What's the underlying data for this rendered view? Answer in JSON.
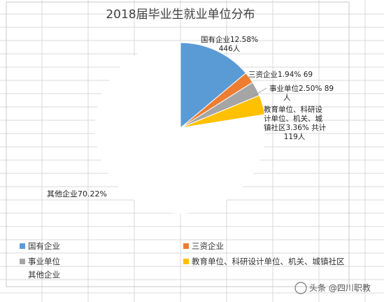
{
  "chart_data": {
    "type": "pie",
    "title": "2018届毕业生就业单位分布",
    "categories": [
      "国有企业",
      "三资企业",
      "事业单位",
      "教育单位、科研设计单位、机关、城镇社区",
      "其他企业"
    ],
    "series": [
      {
        "values": [
          12.58,
          1.94,
          2.5,
          3.36,
          70.22
        ]
      }
    ],
    "counts": [
      446,
      69,
      89,
      119,
      null
    ],
    "colors": [
      "#5b9bd5",
      "#ed7d31",
      "#a5a5a5",
      "#ffc000",
      "#ffffff"
    ],
    "data_labels": [
      [
        "国有企业12.58%",
        "446人"
      ],
      [
        "三资企业1.94% 69"
      ],
      [
        "事业单位2.50% 89",
        "人"
      ],
      [
        "教育单位、科研设",
        "计单位、机关、城",
        "镇社区3.36% 共计",
        "119人"
      ],
      [
        "其他企业70.22%"
      ]
    ],
    "legend": {
      "position": "bottom",
      "entries": [
        "国有企业",
        "三资企业",
        "事业单位",
        "教育单位、科研设计单位、机关、城镇社区",
        "其他企业"
      ]
    }
  },
  "watermark": {
    "text": "头条 @四川职教"
  }
}
